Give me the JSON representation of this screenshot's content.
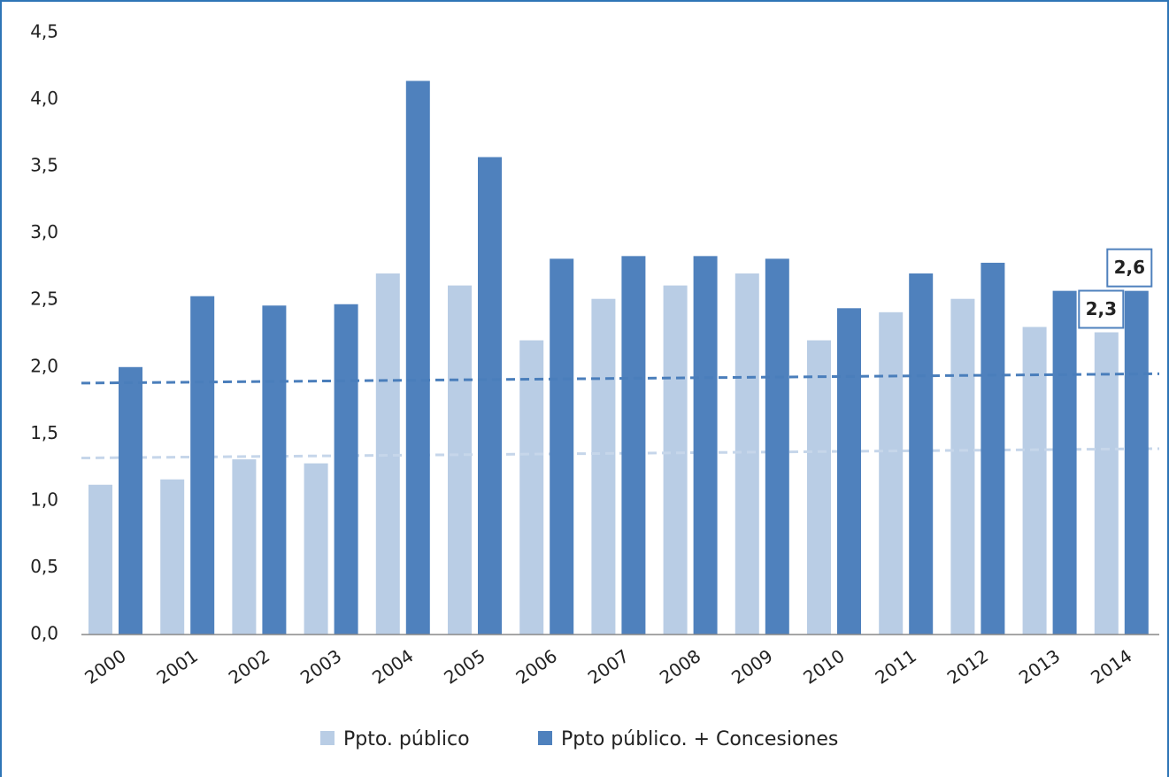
{
  "chart_data": {
    "type": "bar",
    "categories": [
      "2000",
      "2001",
      "2002",
      "2003",
      "2004",
      "2005",
      "2006",
      "2007",
      "2008",
      "2009",
      "2010",
      "2011",
      "2012",
      "2013",
      "2014"
    ],
    "series": [
      {
        "name": "Ppto. público",
        "color": "#b9cde5",
        "values": [
          1.12,
          1.16,
          1.31,
          1.28,
          2.7,
          2.61,
          2.2,
          2.51,
          2.61,
          2.7,
          2.2,
          2.41,
          2.51,
          2.3,
          2.26
        ],
        "value_labels": [
          null,
          null,
          null,
          null,
          null,
          null,
          null,
          null,
          null,
          null,
          null,
          null,
          null,
          null,
          "2,3"
        ],
        "trend": [
          1.32,
          1.39
        ],
        "trend_color": "#c6d6ea"
      },
      {
        "name": "Ppto público. + Concesiones",
        "color": "#4f81bd",
        "values": [
          2.0,
          2.53,
          2.46,
          2.47,
          4.14,
          3.57,
          2.81,
          2.83,
          2.83,
          2.81,
          2.44,
          2.7,
          2.78,
          2.57,
          2.57
        ],
        "value_labels": [
          null,
          null,
          null,
          null,
          null,
          null,
          null,
          null,
          null,
          null,
          null,
          null,
          null,
          null,
          "2,6"
        ],
        "trend": [
          1.88,
          1.95
        ],
        "trend_color": "#4a7ebb"
      }
    ],
    "ylim": [
      0,
      4.5
    ],
    "yticks": [
      {
        "value": 0,
        "label": "0,0"
      },
      {
        "value": 0.5,
        "label": "0,5"
      },
      {
        "value": 1,
        "label": "1,0"
      },
      {
        "value": 1.5,
        "label": "1,5"
      },
      {
        "value": 2,
        "label": "2,0"
      },
      {
        "value": 2.5,
        "label": "2,5"
      },
      {
        "value": 3,
        "label": "3,0"
      },
      {
        "value": 3.5,
        "label": "3,5"
      },
      {
        "value": 4,
        "label": "4,0"
      },
      {
        "value": 4.5,
        "label": "4,5"
      }
    ],
    "grid": false,
    "legend": "bottom"
  }
}
